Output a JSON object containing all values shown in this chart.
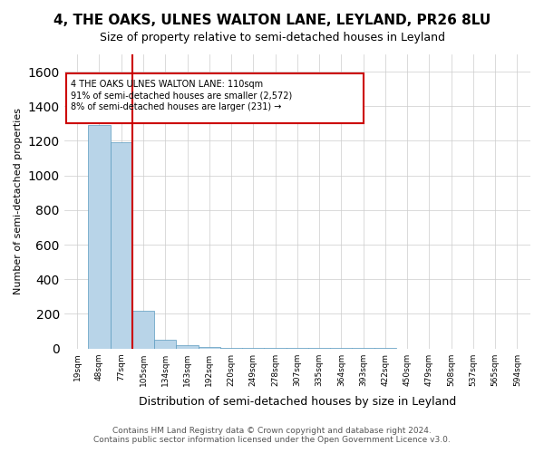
{
  "title": "4, THE OAKS, ULNES WALTON LANE, LEYLAND, PR26 8LU",
  "subtitle": "Size of property relative to semi-detached houses in Leyland",
  "xlabel": "Distribution of semi-detached houses by size in Leyland",
  "ylabel": "Number of semi-detached properties",
  "footer_line1": "Contains HM Land Registry data © Crown copyright and database right 2024.",
  "footer_line2": "Contains public sector information licensed under the Open Government Licence v3.0.",
  "subject_label": "4 THE OAKS ULNES WALTON LANE: 110sqm",
  "annotation_line2": "91% of semi-detached houses are smaller (2,572)",
  "annotation_line3": "8% of semi-detached houses are larger (231) →",
  "bar_color": "#b8d4e8",
  "bar_edge_color": "#5a9abf",
  "redline_color": "#cc0000",
  "annotation_box_color": "#cc0000",
  "ylim": [
    0,
    1700
  ],
  "yticks": [
    0,
    200,
    400,
    600,
    800,
    1000,
    1200,
    1400,
    1600
  ],
  "bin_labels": [
    "19sqm",
    "48sqm",
    "77sqm",
    "105sqm",
    "134sqm",
    "163sqm",
    "192sqm",
    "220sqm",
    "249sqm",
    "278sqm",
    "307sqm",
    "335sqm",
    "364sqm",
    "393sqm",
    "422sqm",
    "450sqm",
    "479sqm",
    "508sqm",
    "537sqm",
    "565sqm",
    "594sqm"
  ],
  "counts": [
    0,
    1290,
    1190,
    220,
    50,
    20,
    10,
    5,
    4,
    3,
    2,
    2,
    1,
    1,
    1,
    0,
    0,
    0,
    0,
    0,
    0
  ]
}
